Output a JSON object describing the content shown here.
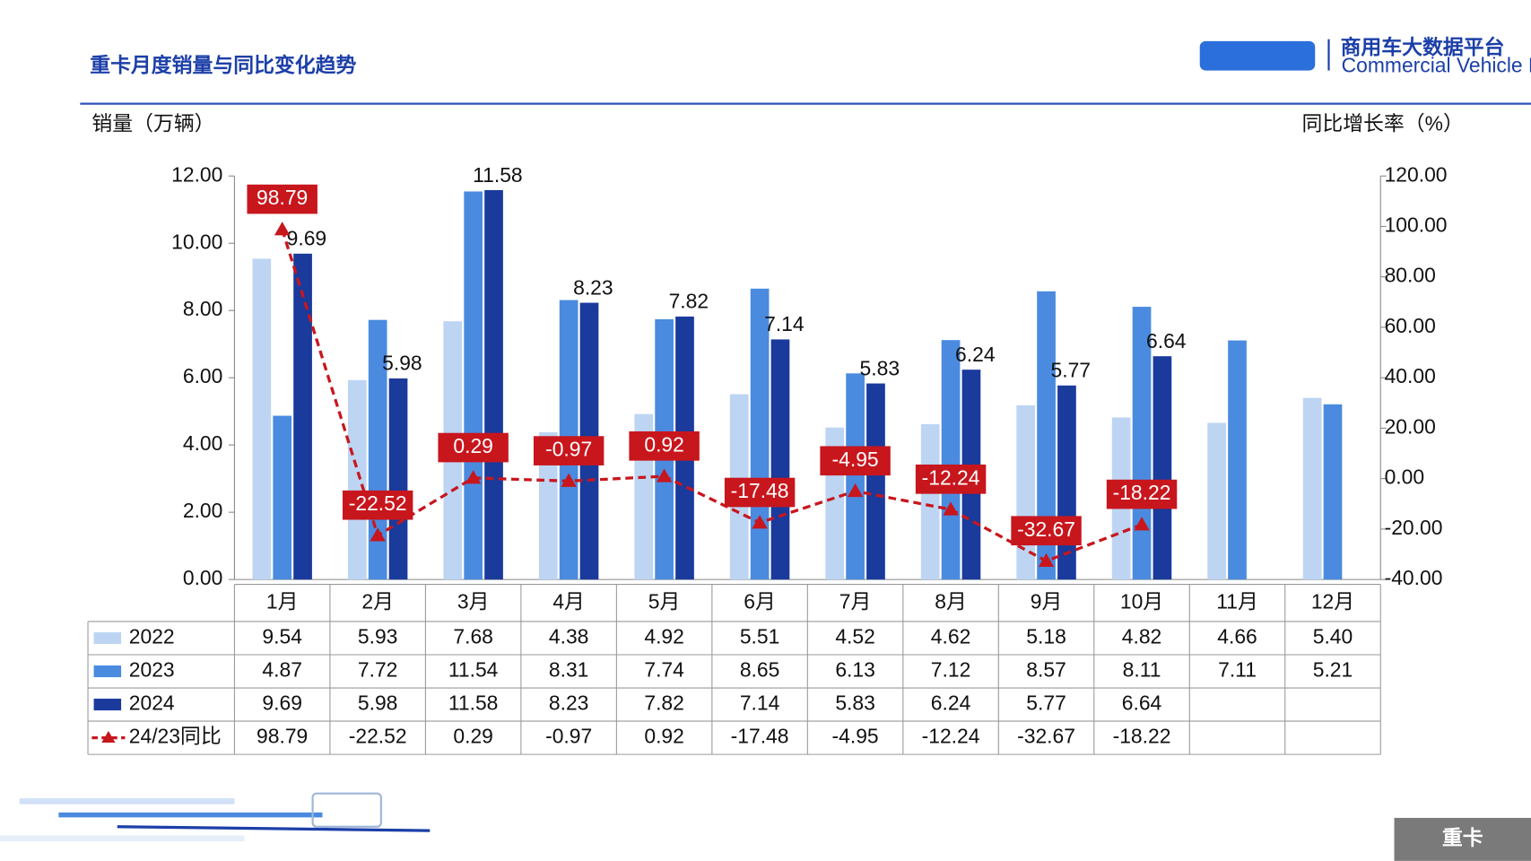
{
  "chart_data": {
    "type": "bar",
    "title": "重卡月度销量与同比变化趋势",
    "y_label": "销量（万辆）",
    "y2_label": "同比增长率（%）",
    "categories": [
      "1月",
      "2月",
      "3月",
      "4月",
      "5月",
      "6月",
      "7月",
      "8月",
      "9月",
      "10月",
      "11月",
      "12月"
    ],
    "series": [
      {
        "name": "2022",
        "color": "#bdd5f3",
        "values": [
          9.54,
          5.93,
          7.68,
          4.38,
          4.92,
          5.51,
          4.52,
          4.62,
          5.18,
          4.82,
          4.66,
          5.4
        ],
        "value_labels": [
          "9.54",
          "5.93",
          "7.68",
          "4.38",
          "4.92",
          "5.51",
          "4.52",
          "4.62",
          "5.18",
          "4.82",
          "4.66",
          "5.40"
        ]
      },
      {
        "name": "2023",
        "color": "#4a8be0",
        "values": [
          4.87,
          7.72,
          11.54,
          8.31,
          7.74,
          8.65,
          6.13,
          7.12,
          8.57,
          8.11,
          7.11,
          5.21
        ]
      },
      {
        "name": "2024",
        "color": "#1a3a9c",
        "values": [
          9.69,
          5.98,
          11.58,
          8.23,
          7.82,
          7.14,
          5.83,
          6.24,
          5.77,
          6.64,
          null,
          null
        ]
      },
      {
        "name": "24/23同比",
        "type": "line",
        "axis": "y2",
        "color": "#c8161d",
        "values": [
          98.79,
          -22.52,
          0.29,
          -0.97,
          0.92,
          -17.48,
          -4.95,
          -12.24,
          -32.67,
          -18.22,
          null,
          null
        ]
      }
    ],
    "ylim": [
      0,
      12
    ],
    "yticks": [
      {
        "value": 0,
        "label": "0.00"
      },
      {
        "value": 2,
        "label": "2.00"
      },
      {
        "value": 4,
        "label": "4.00"
      },
      {
        "value": 6,
        "label": "6.00"
      },
      {
        "value": 8,
        "label": "8.00"
      },
      {
        "value": 10,
        "label": "10.00"
      },
      {
        "value": 12,
        "label": "12.00"
      }
    ],
    "y2lim": [
      -40,
      120
    ],
    "y2ticks": [
      {
        "value": -40,
        "label": "-40.00"
      },
      {
        "value": -20,
        "label": "-20.00"
      },
      {
        "value": 0,
        "label": "0.00"
      },
      {
        "value": 20,
        "label": "20.00"
      },
      {
        "value": 40,
        "label": "40.00"
      },
      {
        "value": 60,
        "label": "60.00"
      },
      {
        "value": 80,
        "label": "80.00"
      },
      {
        "value": 100,
        "label": "100.00"
      },
      {
        "value": 120,
        "label": "120.00"
      }
    ]
  },
  "logo": {
    "name": "商用车大数据平台",
    "subtitle": "Commercial Vehicle Big Data Platform"
  },
  "tag": "重卡"
}
